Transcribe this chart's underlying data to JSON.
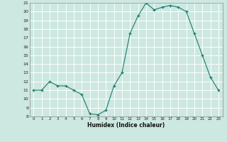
{
  "x": [
    0,
    1,
    2,
    3,
    4,
    5,
    6,
    7,
    8,
    9,
    10,
    11,
    12,
    13,
    14,
    15,
    16,
    17,
    18,
    19,
    20,
    21,
    22,
    23
  ],
  "y": [
    11,
    11,
    12,
    11.5,
    11.5,
    11,
    10.5,
    8.3,
    8.2,
    8.7,
    11.5,
    13,
    17.5,
    19.5,
    21,
    20.2,
    20.5,
    20.7,
    20.5,
    20,
    17.5,
    15,
    12.5,
    11
  ],
  "xlabel": "Humidex (Indice chaleur)",
  "ylim": [
    8,
    21
  ],
  "xlim": [
    -0.5,
    23.5
  ],
  "yticks": [
    8,
    9,
    10,
    11,
    12,
    13,
    14,
    15,
    16,
    17,
    18,
    19,
    20,
    21
  ],
  "xticks": [
    0,
    1,
    2,
    3,
    4,
    5,
    6,
    7,
    8,
    9,
    10,
    11,
    12,
    13,
    14,
    15,
    16,
    17,
    18,
    19,
    20,
    21,
    22,
    23
  ],
  "line_color": "#1a7a6e",
  "bg_color": "#cce8e0",
  "grid_color": "#ffffff"
}
